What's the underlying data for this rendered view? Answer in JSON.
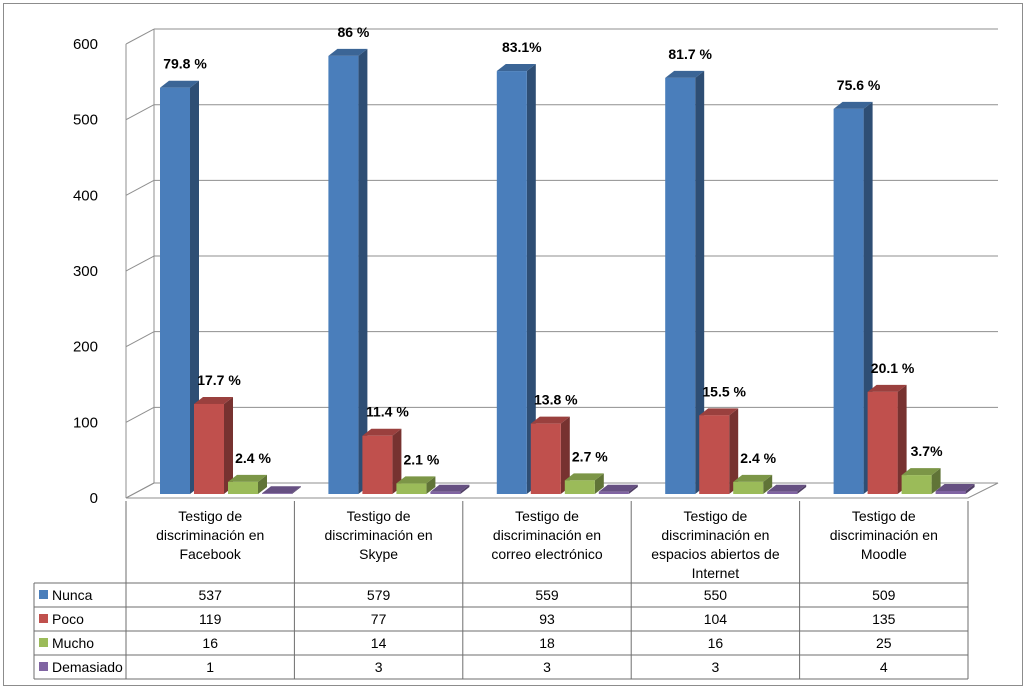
{
  "chart_data": {
    "type": "bar",
    "title": "",
    "xlabel": "",
    "ylabel": "",
    "ylim": [
      0,
      600
    ],
    "yticks": [
      0,
      100,
      200,
      300,
      400,
      500,
      600
    ],
    "grid": true,
    "legend": "data-table",
    "categories": [
      [
        "Testigo de",
        "discriminación en",
        "Facebook"
      ],
      [
        "Testigo de",
        "discriminación en",
        "Skype"
      ],
      [
        "Testigo de",
        "discriminación en",
        "correo electrónico"
      ],
      [
        "Testigo de",
        "discriminación en",
        "espacios abiertos de",
        "Internet"
      ],
      [
        "Testigo de",
        "discriminación en",
        "Moodle"
      ]
    ],
    "series": [
      {
        "name": "Nunca",
        "color": "#4a7ebb",
        "values": [
          537,
          579,
          559,
          550,
          509
        ],
        "labels": [
          "79.8 %",
          "86 %",
          "83.1%",
          "81.7 %",
          "75.6 %"
        ]
      },
      {
        "name": "Poco",
        "color": "#c0504d",
        "values": [
          119,
          77,
          93,
          104,
          135
        ],
        "labels": [
          "17.7 %",
          "11.4 %",
          "13.8 %",
          "15.5 %",
          "20.1 %"
        ]
      },
      {
        "name": "Mucho",
        "color": "#9bbb59",
        "values": [
          16,
          14,
          18,
          16,
          25
        ],
        "labels": [
          "2.4 %",
          "2.1 %",
          "2.7 %",
          "2.4 %",
          "3.7%"
        ]
      },
      {
        "name": "Demasiado",
        "color": "#8064a2",
        "values": [
          1,
          3,
          3,
          3,
          4
        ],
        "labels": [
          "",
          "",
          "",
          "",
          ""
        ]
      }
    ]
  }
}
